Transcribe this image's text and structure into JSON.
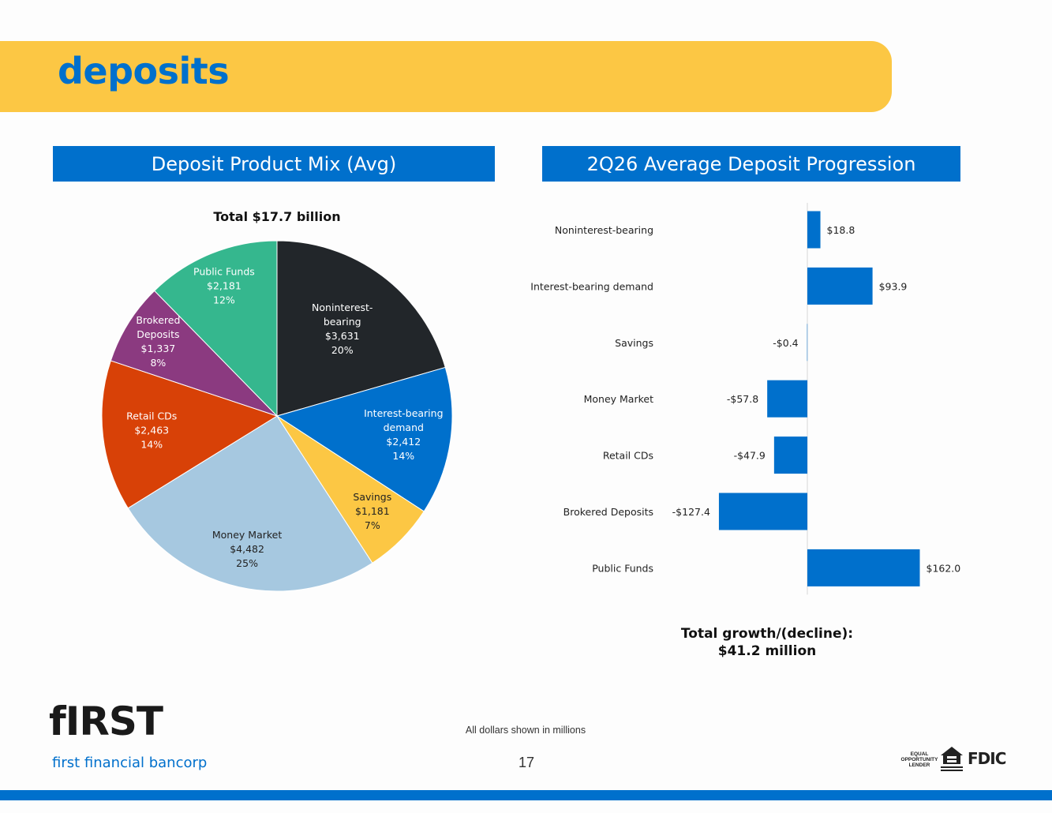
{
  "header": {
    "title": "deposits"
  },
  "sections": {
    "left_title": "Deposit Product Mix (Avg)",
    "right_title": "2Q26 Average Deposit Progression"
  },
  "colors": {
    "brand_blue": "#0070cc",
    "brand_yellow": "#fcc744"
  },
  "chart_data": [
    {
      "type": "pie",
      "title": "Total $17.7 billion",
      "slices": [
        {
          "name": "Noninterest-bearing",
          "label_lines": [
            "Noninterest-",
            "bearing",
            "$3,631",
            "20%"
          ],
          "value": 3631,
          "percent": 20,
          "color": "#22262a"
        },
        {
          "name": "Interest-bearing demand",
          "label_lines": [
            "Interest-bearing",
            "demand",
            "$2,412",
            "14%"
          ],
          "value": 2412,
          "percent": 14,
          "color": "#0070cc"
        },
        {
          "name": "Savings",
          "label_lines": [
            "Savings",
            "$1,181",
            "7%"
          ],
          "value": 1181,
          "percent": 7,
          "color": "#fcc744"
        },
        {
          "name": "Money Market",
          "label_lines": [
            "Money Market",
            "$4,482",
            "25%"
          ],
          "value": 4482,
          "percent": 25,
          "color": "#a6c8e0"
        },
        {
          "name": "Retail CDs",
          "label_lines": [
            "Retail CDs",
            "$2,463",
            "14%"
          ],
          "value": 2463,
          "percent": 14,
          "color": "#d84107"
        },
        {
          "name": "Brokered Deposits",
          "label_lines": [
            "Brokered",
            "Deposits",
            "$1,337",
            "8%"
          ],
          "value": 1337,
          "percent": 8,
          "color": "#8b3a80"
        },
        {
          "name": "Public Funds",
          "label_lines": [
            "Public Funds",
            "$2,181",
            "12%"
          ],
          "value": 2181,
          "percent": 12,
          "color": "#35b78e"
        }
      ]
    },
    {
      "type": "bar",
      "orientation": "horizontal",
      "categories": [
        "Noninterest-bearing",
        "Interest-bearing demand",
        "Savings",
        "Money Market",
        "Retail CDs",
        "Brokered Deposits",
        "Public Funds"
      ],
      "values": [
        18.8,
        93.9,
        -0.4,
        -57.8,
        -47.9,
        -127.4,
        162.0
      ],
      "value_labels": [
        "$18.8",
        "$93.9",
        "-$0.4",
        "-$57.8",
        "-$47.9",
        "-$127.4",
        "$162.0"
      ],
      "color": "#0070cc",
      "grid": false
    }
  ],
  "total_note": {
    "line1": "Total growth/(decline):",
    "line2": "$41.2 million"
  },
  "footnote": "All dollars shown in millions",
  "page_number": "17",
  "logo": {
    "wordmark": "fIRST",
    "name": "first financial bancorp"
  },
  "badges": {
    "equal_opportunity": "EQUAL OPPORTUNITY LENDER",
    "fdic": "FDIC"
  }
}
